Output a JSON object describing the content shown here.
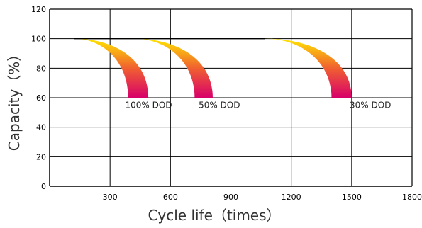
{
  "chart_data": {
    "type": "line",
    "title": "",
    "xlabel": "Cycle life（times）",
    "ylabel": "Capacity（%）",
    "xlim": [
      0,
      1800
    ],
    "ylim": [
      0,
      120
    ],
    "xticks": [
      300,
      600,
      900,
      1200,
      1500,
      1800
    ],
    "xtick_labels": [
      "300",
      "600",
      "900",
      "1200",
      "1500",
      "1800"
    ],
    "yticks": [
      0,
      20,
      40,
      60,
      80,
      100,
      120
    ],
    "ytick_labels": [
      "0",
      "20",
      "40",
      "60",
      "80",
      "100",
      "120"
    ],
    "grid": true,
    "legend": "none",
    "baseline": {
      "x": [
        120,
        1070
      ],
      "y": [
        100,
        100
      ]
    },
    "bands": [
      {
        "name": "100% DOD",
        "start": 120,
        "y_end": 60,
        "inner_end": 390,
        "outer_end": 490
      },
      {
        "name": "50% DOD",
        "start": 420,
        "y_end": 60,
        "inner_end": 720,
        "outer_end": 810
      },
      {
        "name": "30% DOD",
        "start": 1070,
        "y_end": 60,
        "inner_end": 1400,
        "outer_end": 1500
      }
    ],
    "annotations": [
      {
        "text": "100% DOD",
        "x": 375,
        "y": 55
      },
      {
        "text": "50% DOD",
        "x": 740,
        "y": 55
      },
      {
        "text": "30% DOD",
        "x": 1490,
        "y": 55
      }
    ],
    "colors": {
      "band_top": "#ffe600",
      "band_mid": "#f06030",
      "band_bottom": "#d8006a",
      "grid": "#000000"
    }
  }
}
